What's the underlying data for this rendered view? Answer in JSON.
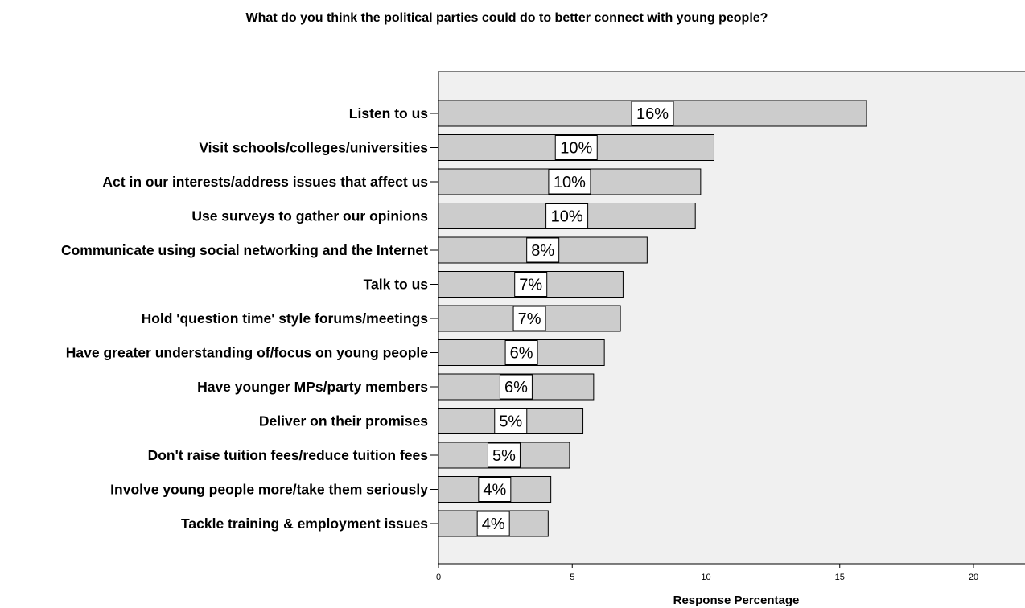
{
  "chart_data": {
    "type": "bar",
    "orientation": "horizontal",
    "title": "What do you think the political parties could do to better connect with young people?",
    "xlabel": "Response Percentage",
    "ylabel": "",
    "xlim": [
      0,
      22
    ],
    "xticks": [
      0,
      5,
      10,
      15,
      20
    ],
    "grid": false,
    "categories": [
      "Listen to us",
      "Visit schools/colleges/universities",
      "Act in our interests/address issues that affect us",
      "Use surveys to gather our opinions",
      "Communicate using social networking and the Internet",
      "Talk to us",
      "Hold 'question time' style forums/meetings",
      "Have greater understanding of/focus on young people",
      "Have younger MPs/party members",
      "Deliver on their promises",
      "Don't raise tuition fees/reduce tuition fees",
      "Involve young people more/take them seriously",
      "Tackle training & employment issues"
    ],
    "values": [
      16.0,
      10.3,
      9.8,
      9.6,
      7.8,
      6.9,
      6.8,
      6.2,
      5.8,
      5.4,
      4.9,
      4.2,
      4.1
    ],
    "data_labels": [
      "16%",
      "10%",
      "10%",
      "10%",
      "8%",
      "7%",
      "7%",
      "6%",
      "6%",
      "5%",
      "5%",
      "4%",
      "4%"
    ],
    "colors": {
      "bar_fill": "#cccccc",
      "bar_stroke": "#000000",
      "plot_background": "#f0f0f0",
      "label_box_fill": "#ffffff"
    }
  }
}
